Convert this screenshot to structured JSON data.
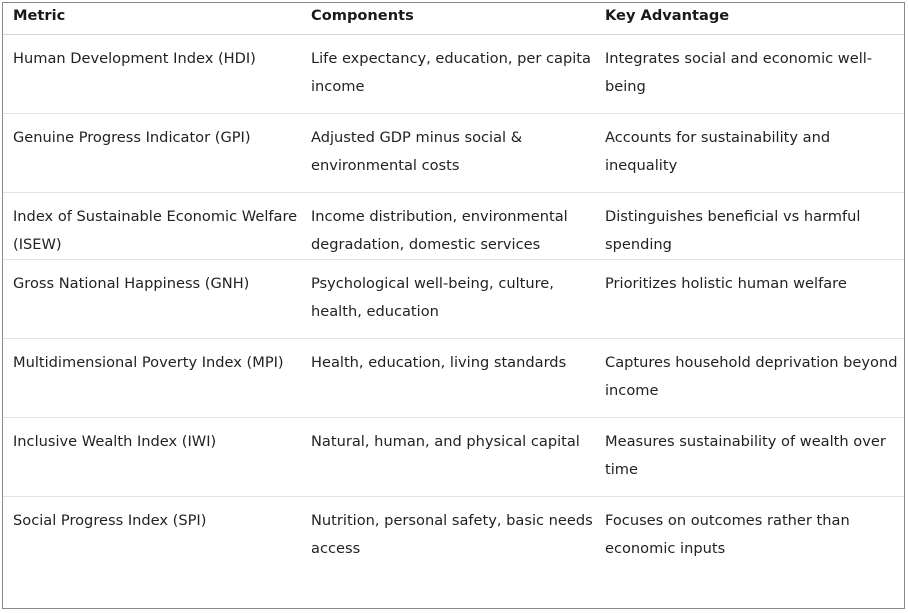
{
  "table": {
    "headers": [
      "Metric",
      "Components",
      "Key Advantage"
    ],
    "rows": [
      [
        "Human Development Index (HDI)",
        "Life expectancy, education, per capita income",
        "Integrates social and economic well-being"
      ],
      [
        "Genuine Progress Indicator (GPI)",
        "Adjusted GDP minus social & environmental costs",
        "Accounts for sustainability and inequality"
      ],
      [
        "Index of Sustainable Economic Welfare (ISEW)",
        "Income distribution, environmental degradation, domestic services",
        "Distinguishes beneficial vs harmful spending"
      ],
      [
        "Gross National Happiness (GNH)",
        "Psychological well-being, culture, health, education",
        "Prioritizes holistic human welfare"
      ],
      [
        "Multidimensional Poverty Index (MPI)",
        "Health, education, living standards",
        "Captures household deprivation beyond income"
      ],
      [
        "Inclusive Wealth Index (IWI)",
        "Natural, human, and physical capital",
        "Measures sustainability of wealth over time"
      ],
      [
        "Social Progress Index (SPI)",
        "Nutrition, personal safety, basic needs access",
        "Focuses on outcomes rather than economic inputs"
      ]
    ]
  }
}
